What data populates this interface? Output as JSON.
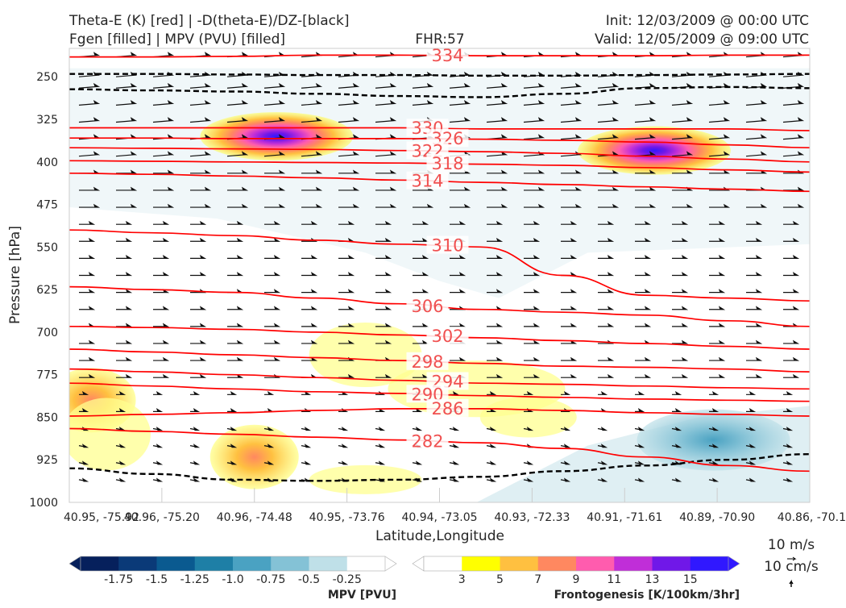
{
  "header": {
    "title_line1": "Theta-E (K) [red] | -D(theta-E)/DZ-[black]",
    "title_line2": "Fgen [filled] | MPV (PVU) [filled]",
    "fhr": "FHR:57",
    "init": "Init: 12/03/2009 @ 00:00 UTC",
    "valid": "Valid: 12/05/2009 @ 09:00 UTC"
  },
  "chart_data": {
    "type": "cross-section contour",
    "xlabel": "Latitude,Longitude",
    "ylabel": "Pressure [hPa]",
    "x_ticks": [
      "40.95, -75.92",
      "40.96, -75.20",
      "40.96, -74.48",
      "40.95, -73.76",
      "40.94, -73.05",
      "40.93, -72.33",
      "40.91, -71.61",
      "40.89, -70.90",
      "40.86, -70.1"
    ],
    "y_ticks": [
      250,
      325,
      400,
      475,
      550,
      625,
      700,
      775,
      850,
      925,
      1000
    ],
    "y_range": [
      1000,
      200
    ],
    "theta_e": {
      "color": "#ff0000",
      "levels": [
        {
          "value": 334,
          "label": "334",
          "p": [
            215,
            215,
            214,
            212,
            212,
            213,
            213,
            213,
            212,
            212
          ]
        },
        {
          "value": 330,
          "label": "330",
          "p": [
            340,
            340,
            340,
            340,
            340,
            342,
            342,
            342,
            342,
            345
          ]
        },
        {
          "value": 326,
          "label": "326",
          "p": [
            358,
            358,
            359,
            359,
            359,
            360,
            362,
            365,
            370,
            375
          ]
        },
        {
          "value": 322,
          "label": "322",
          "p": [
            375,
            376,
            377,
            378,
            380,
            382,
            385,
            390,
            395,
            400
          ]
        },
        {
          "value": 318,
          "label": "318",
          "p": [
            398,
            399,
            400,
            401,
            402,
            404,
            406,
            410,
            414,
            418
          ]
        },
        {
          "value": 314,
          "label": "314",
          "p": [
            420,
            422,
            425,
            428,
            432,
            436,
            440,
            444,
            448,
            452
          ]
        },
        {
          "value": 310,
          "label": "310",
          "p": [
            520,
            525,
            530,
            538,
            545,
            550,
            600,
            635,
            640,
            645
          ]
        },
        {
          "value": 306,
          "label": "306",
          "p": [
            620,
            625,
            630,
            640,
            650,
            660,
            665,
            670,
            680,
            690
          ]
        },
        {
          "value": 302,
          "label": "302",
          "p": [
            690,
            692,
            695,
            700,
            705,
            710,
            715,
            720,
            725,
            730
          ]
        },
        {
          "value": 298,
          "label": "298",
          "p": [
            730,
            735,
            740,
            745,
            750,
            755,
            760,
            762,
            765,
            770
          ]
        },
        {
          "value": 294,
          "label": "294",
          "p": [
            765,
            770,
            775,
            780,
            785,
            790,
            792,
            795,
            798,
            800
          ]
        },
        {
          "value": 290,
          "label": "290",
          "p": [
            790,
            795,
            800,
            805,
            808,
            812,
            815,
            818,
            820,
            822
          ]
        },
        {
          "value": 286,
          "label": "286",
          "p": [
            848,
            845,
            842,
            838,
            835,
            835,
            838,
            842,
            845,
            848
          ]
        },
        {
          "value": 282,
          "label": "282",
          "p": [
            870,
            875,
            880,
            885,
            890,
            895,
            905,
            920,
            935,
            945
          ]
        }
      ]
    },
    "d_theta_e_dz": {
      "color": "#000000",
      "contours": [
        {
          "p": [
            245,
            245,
            246,
            247,
            247,
            248,
            248,
            247,
            246,
            245
          ]
        },
        {
          "p": [
            272,
            274,
            276,
            280,
            284,
            286,
            280,
            270,
            268,
            270
          ]
        },
        {
          "p": [
            940,
            950,
            960,
            962,
            960,
            955,
            945,
            935,
            925,
            915
          ]
        }
      ]
    },
    "fgen_filled": {
      "name": "Frontogenesis [K/100km/3hr]",
      "levels": [
        3,
        5,
        7,
        9,
        11,
        13,
        15
      ],
      "colors": [
        "#ffff00",
        "#ffc040",
        "#ff8860",
        "#ff5cae",
        "#c02ed8",
        "#7018e8",
        "#3018ff"
      ],
      "maxima": [
        {
          "x_frac": 0.28,
          "p": 355,
          "peak": 15
        },
        {
          "x_frac": 0.79,
          "p": 380,
          "peak": 15
        },
        {
          "x_frac": 0.03,
          "p": 820,
          "peak": 7
        },
        {
          "x_frac": 0.25,
          "p": 920,
          "peak": 7
        }
      ]
    },
    "mpv_filled": {
      "name": "MPV [PVU]",
      "levels": [
        -1.75,
        -1.5,
        -1.25,
        -1.0,
        -0.75,
        -0.5,
        -0.25
      ],
      "colors": [
        "#06205c",
        "#0a3a78",
        "#0a5a90",
        "#1e7fa6",
        "#4aa2c2",
        "#84c2d6",
        "#bfe0e8"
      ],
      "minima": [
        {
          "x_frac": 0.87,
          "p": 890,
          "value": -1.0
        }
      ]
    },
    "wind_reference": {
      "horizontal": "10 m/s",
      "vertical": "10 cm/s"
    }
  },
  "colorbars": {
    "mpv": {
      "label": "MPV [PVU]",
      "tick_labels": [
        "-1.75",
        "-1.5",
        "-1.25",
        "-1.0",
        "-0.75",
        "-0.5",
        "-0.25"
      ]
    },
    "fgen": {
      "label": "Frontogenesis [K/100km/3hr]",
      "tick_labels": [
        "3",
        "5",
        "7",
        "9",
        "11",
        "13",
        "15"
      ]
    }
  }
}
